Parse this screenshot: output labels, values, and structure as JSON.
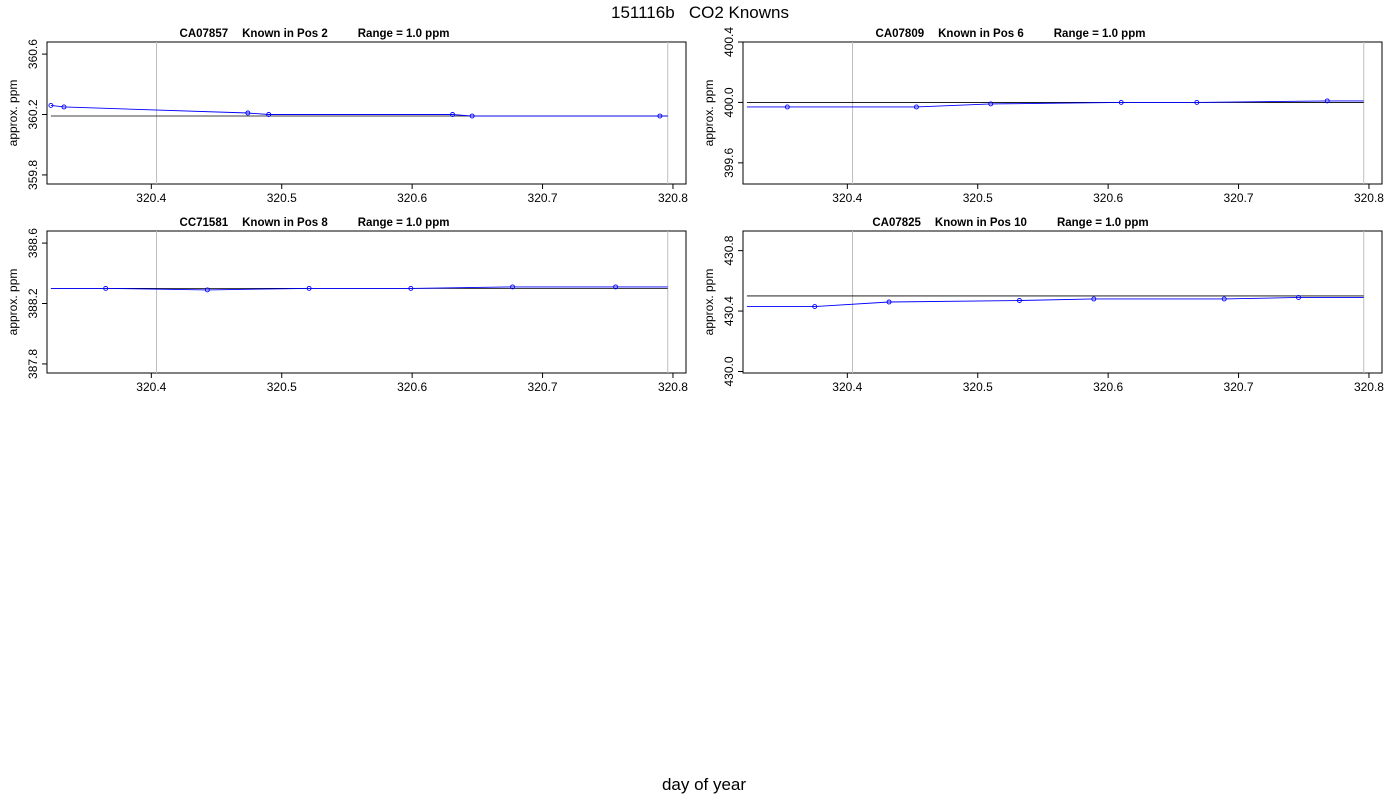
{
  "page": {
    "title": "151116b   CO2 Knowns",
    "x_axis_label": "day of year"
  },
  "colors": {
    "series_line": "#0000ff",
    "baseline": "#000000",
    "guide_line": "#bebebe",
    "frame": "#000000"
  },
  "chart_data": [
    {
      "type": "line",
      "title_parts": [
        "CA07857",
        "Known in Pos 2",
        "Range = 1.0 ppm"
      ],
      "ylabel": "approx. ppm",
      "xlim": [
        320.32,
        320.81
      ],
      "ylim": [
        359.74,
        360.68
      ],
      "xticks": [
        "320.4",
        "320.5",
        "320.6",
        "320.7",
        "320.8"
      ],
      "yticks": [
        "359.8",
        "360.2",
        "360.6"
      ],
      "x_guides": [
        320.404,
        320.796
      ],
      "baseline_y": 360.19,
      "x": [
        320.323,
        320.333,
        320.474,
        320.49,
        320.631,
        320.646,
        320.79
      ],
      "y": [
        360.26,
        360.25,
        360.21,
        360.2,
        360.2,
        360.19,
        360.19
      ]
    },
    {
      "type": "line",
      "title_parts": [
        "CA07809",
        "Known in Pos 6",
        "Range = 1.0 ppm"
      ],
      "ylabel": "approx. ppm",
      "xlim": [
        320.32,
        320.81
      ],
      "ylim": [
        399.46,
        400.4
      ],
      "xticks": [
        "320.4",
        "320.5",
        "320.6",
        "320.7",
        "320.8"
      ],
      "yticks": [
        "399.6",
        "400.0",
        "400.4"
      ],
      "x_guides": [
        320.404,
        320.796
      ],
      "baseline_y": 400.0,
      "x": [
        320.354,
        320.453,
        320.51,
        320.61,
        320.668,
        320.768
      ],
      "y": [
        399.97,
        399.97,
        399.99,
        400.0,
        400.0,
        400.01
      ]
    },
    {
      "type": "line",
      "title_parts": [
        "CC71581",
        "Known in Pos 8",
        "Range = 1.0 ppm"
      ],
      "ylabel": "approx. ppm",
      "xlim": [
        320.32,
        320.81
      ],
      "ylim": [
        387.74,
        388.68
      ],
      "xticks": [
        "320.4",
        "320.5",
        "320.6",
        "320.7",
        "320.8"
      ],
      "yticks": [
        "387.8",
        "388.2",
        "388.6"
      ],
      "x_guides": [
        320.404,
        320.796
      ],
      "baseline_y": 388.3,
      "x": [
        320.365,
        320.443,
        320.521,
        320.599,
        320.677,
        320.756
      ],
      "y": [
        388.3,
        388.29,
        388.3,
        388.3,
        388.31,
        388.31
      ]
    },
    {
      "type": "line",
      "title_parts": [
        "CA07825",
        "Known in Pos 10",
        "Range = 1.0 ppm"
      ],
      "ylabel": "approx. ppm",
      "xlim": [
        320.32,
        320.81
      ],
      "ylim": [
        429.99,
        430.93
      ],
      "xticks": [
        "320.4",
        "320.5",
        "320.6",
        "320.7",
        "320.8"
      ],
      "yticks": [
        "430.0",
        "430.4",
        "430.8"
      ],
      "x_guides": [
        320.404,
        320.796
      ],
      "baseline_y": 430.5,
      "x": [
        320.375,
        320.432,
        320.532,
        320.589,
        320.689,
        320.746
      ],
      "y": [
        430.43,
        430.46,
        430.47,
        430.48,
        430.48,
        430.49
      ]
    }
  ]
}
